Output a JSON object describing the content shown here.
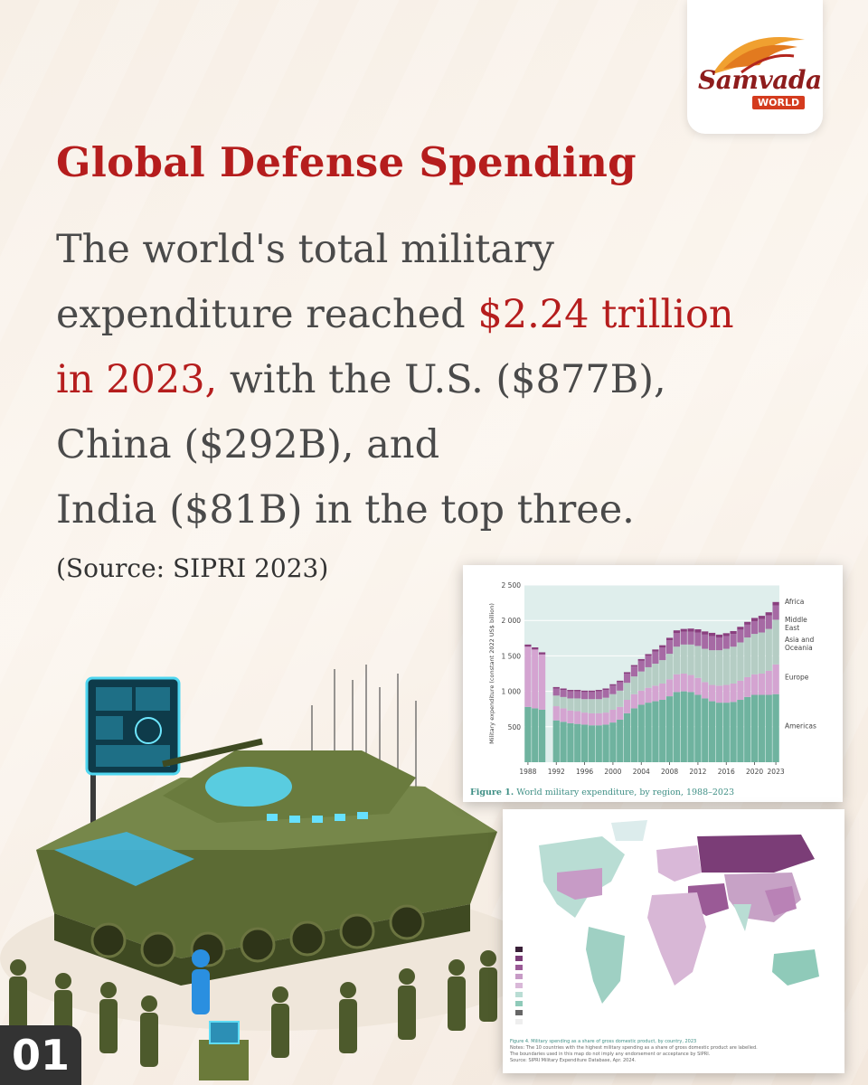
{
  "logo": {
    "brand": "Samvada",
    "sub": "WORLD"
  },
  "title": "Global Defense Spending",
  "body": {
    "line1": "The world's total military",
    "line2_a": "expenditure reached ",
    "line2_hl": "$2.24 trillion",
    "line3_hl": "in 2023,",
    "line3_b": " with the U.S. ($877B),",
    "line4": "China ($292B), and",
    "line5": "India ($81B) in the top three."
  },
  "source": "(Source: SIPRI 2023)",
  "figure1": {
    "caption_label": "Figure 1.",
    "caption_text": " World military expenditure, by region, 1988–2023"
  },
  "figure2": {
    "caption_line1": "Figure 4. Military spending as a share of gross domestic product, by country, 2023",
    "caption_line2": "Notes: The 10 countries with the highest military spending as a share of gross domestic product are labelled.",
    "caption_line3": "The boundaries used in this map do not imply any endorsement or acceptance by SIPRI.",
    "caption_line4": "Source: SIPRI Military Expenditure Database, Apr. 2024."
  },
  "page_number": "01",
  "chart_data": {
    "type": "area",
    "x": [
      1988,
      1989,
      1990,
      1991,
      1992,
      1993,
      1994,
      1995,
      1996,
      1997,
      1998,
      1999,
      2000,
      2001,
      2002,
      2003,
      2004,
      2005,
      2006,
      2007,
      2008,
      2009,
      2010,
      2011,
      2012,
      2013,
      2014,
      2015,
      2016,
      2017,
      2018,
      2019,
      2020,
      2021,
      2022,
      2023
    ],
    "ylabel": "Military expenditure (constant 2022 US$ billion)",
    "ylim": [
      0,
      2500
    ],
    "yticks": [
      "500",
      "1 000",
      "1 500",
      "2 000",
      "2 500"
    ],
    "xticks": [
      "1988",
      "1992",
      "1996",
      "2000",
      "2004",
      "2008",
      "2012",
      "2016",
      "2020",
      "2023"
    ],
    "series": [
      {
        "name": "Americas",
        "values": [
          780,
          760,
          740,
          0,
          590,
          570,
          550,
          540,
          530,
          520,
          520,
          530,
          560,
          600,
          690,
          760,
          810,
          840,
          860,
          880,
          930,
          990,
          1000,
          990,
          950,
          900,
          860,
          840,
          840,
          850,
          880,
          920,
          950,
          950,
          950,
          960
        ]
      },
      {
        "name": "Europe",
        "values": [
          850,
          830,
          780,
          0,
          200,
          190,
          180,
          180,
          170,
          170,
          170,
          170,
          180,
          180,
          190,
          200,
          200,
          210,
          220,
          230,
          240,
          250,
          250,
          240,
          240,
          230,
          230,
          240,
          250,
          260,
          270,
          280,
          290,
          300,
          340,
          420
        ]
      },
      {
        "name": "Asia and Oceania",
        "values": [
          0,
          0,
          0,
          0,
          150,
          160,
          170,
          180,
          190,
          200,
          200,
          210,
          220,
          230,
          240,
          250,
          270,
          290,
          310,
          330,
          360,
          390,
          410,
          430,
          450,
          470,
          490,
          500,
          510,
          520,
          540,
          560,
          570,
          580,
          590,
          630
        ]
      },
      {
        "name": "Middle East",
        "values": [
          0,
          0,
          0,
          0,
          100,
          100,
          100,
          100,
          100,
          100,
          110,
          110,
          120,
          120,
          130,
          140,
          150,
          160,
          170,
          180,
          190,
          190,
          180,
          180,
          190,
          200,
          200,
          180,
          180,
          180,
          180,
          180,
          180,
          190,
          190,
          200
        ]
      },
      {
        "name": "Africa",
        "values": [
          30,
          30,
          30,
          0,
          20,
          20,
          20,
          20,
          20,
          20,
          20,
          20,
          20,
          20,
          20,
          20,
          25,
          25,
          30,
          30,
          35,
          40,
          40,
          45,
          45,
          45,
          45,
          40,
          40,
          40,
          40,
          40,
          45,
          45,
          45,
          50
        ]
      }
    ],
    "colors": [
      "#6fb39f",
      "#d4a4d1",
      "#b5cdc4",
      "#a66aa4",
      "#8a3f7f"
    ]
  }
}
